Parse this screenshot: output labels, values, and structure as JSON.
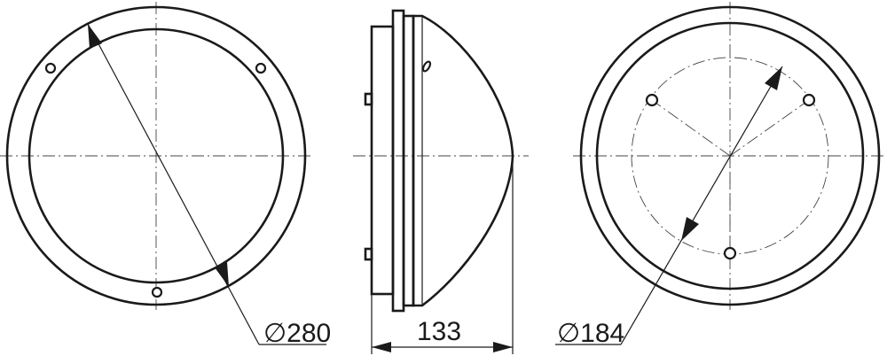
{
  "views": [
    {
      "name": "front-view"
    },
    {
      "name": "side-view"
    },
    {
      "name": "rear-view"
    }
  ],
  "dimensions": {
    "front_diameter": "∅280",
    "depth": "133",
    "mount_diameter": "∅184"
  }
}
